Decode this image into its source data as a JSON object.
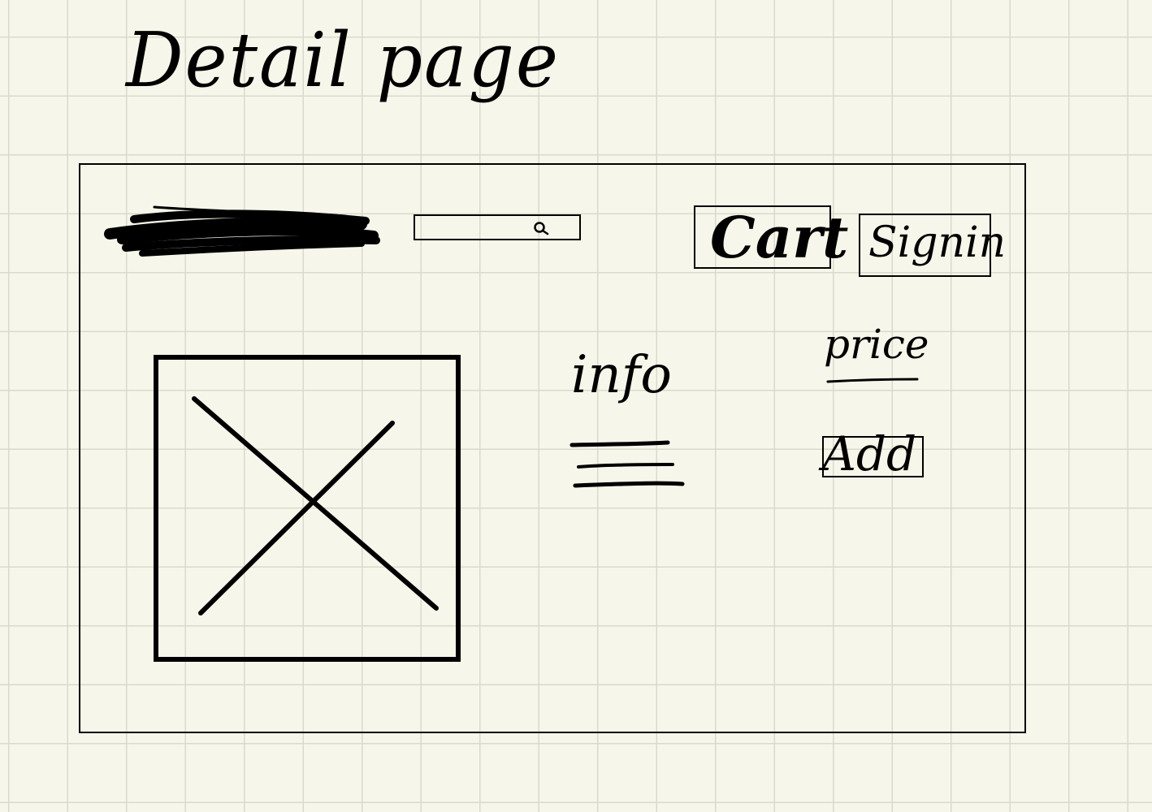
{
  "title": "Detail page",
  "header": {
    "logo_icon": "scribble-logo-placeholder",
    "search": {
      "value": "",
      "icon": "search-icon"
    },
    "cart_label": "Cart",
    "signin_label": "Signin"
  },
  "product": {
    "image_icon": "image-placeholder-x",
    "info_label": "info",
    "price_label": "price",
    "add_label": "Add"
  },
  "colors": {
    "background": "#f7f6ea",
    "grid": "#d9d9cc",
    "ink": "#000000"
  }
}
